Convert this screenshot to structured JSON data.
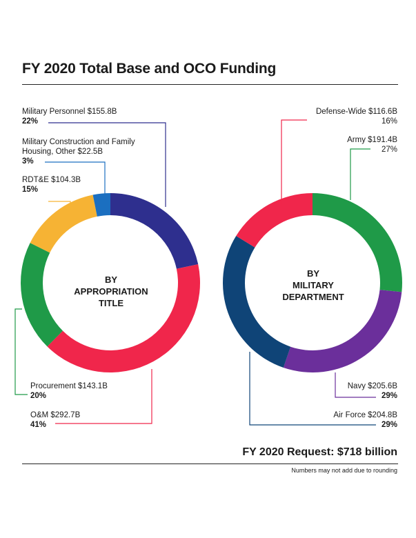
{
  "title": "FY 2020 Total Base and OCO Funding",
  "request": "FY 2020 Request: $718 billion",
  "note": "Numbers may not add due to rounding",
  "chart_data": [
    {
      "type": "pie",
      "center_label": [
        "BY",
        "APPROPRIATION",
        "TITLE"
      ],
      "slices": [
        {
          "label": "Military Personnel $155.8B",
          "value": 155.8,
          "pct": "22%",
          "color": "#2e2f8e"
        },
        {
          "label": "O&M $292.7B",
          "value": 292.7,
          "pct": "41%",
          "color": "#f0264b"
        },
        {
          "label": "Procurement $143.1B",
          "value": 143.1,
          "pct": "20%",
          "color": "#1f9a48"
        },
        {
          "label": "RDT&E $104.3B",
          "value": 104.3,
          "pct": "15%",
          "color": "#f6b334"
        },
        {
          "label": "Military Construction and Family Housing, Other $22.5B",
          "value": 22.5,
          "pct": "3%",
          "color": "#1b6fc0"
        }
      ]
    },
    {
      "type": "pie",
      "center_label": [
        "BY",
        "MILITARY",
        "DEPARTMENT"
      ],
      "slices": [
        {
          "label": "Army $191.4B",
          "value": 191.4,
          "pct": "27%",
          "color": "#1f9a48"
        },
        {
          "label": "Navy $205.6B",
          "value": 205.6,
          "pct": "29%",
          "color": "#6b2f9b"
        },
        {
          "label": "Air Force $204.8B",
          "value": 204.8,
          "pct": "29%",
          "color": "#0f4477"
        },
        {
          "label": "Defense-Wide $116.6B",
          "value": 116.6,
          "pct": "16%",
          "color": "#f0264b"
        }
      ]
    }
  ]
}
